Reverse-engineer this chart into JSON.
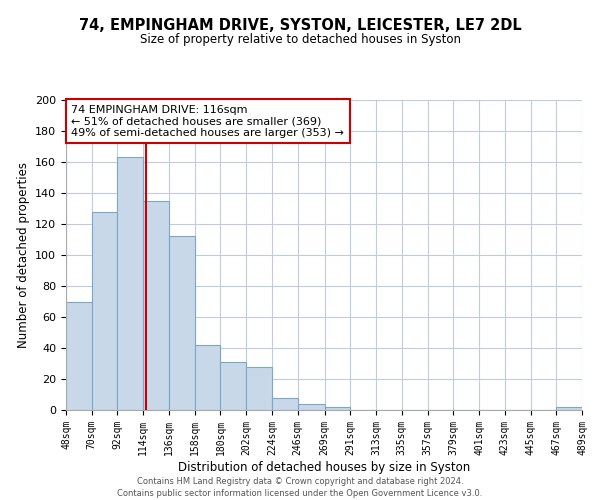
{
  "title": "74, EMPINGHAM DRIVE, SYSTON, LEICESTER, LE7 2DL",
  "subtitle": "Size of property relative to detached houses in Syston",
  "xlabel": "Distribution of detached houses by size in Syston",
  "ylabel": "Number of detached properties",
  "bar_edges": [
    48,
    70,
    92,
    114,
    136,
    158,
    180,
    202,
    224,
    246,
    269,
    291,
    313,
    335,
    357,
    379,
    401,
    423,
    445,
    467,
    489
  ],
  "bar_heights": [
    70,
    128,
    163,
    135,
    112,
    42,
    31,
    28,
    8,
    4,
    2,
    0,
    0,
    0,
    0,
    0,
    0,
    0,
    0,
    2
  ],
  "tick_labels": [
    "48sqm",
    "70sqm",
    "92sqm",
    "114sqm",
    "136sqm",
    "158sqm",
    "180sqm",
    "202sqm",
    "224sqm",
    "246sqm",
    "269sqm",
    "291sqm",
    "313sqm",
    "335sqm",
    "357sqm",
    "379sqm",
    "401sqm",
    "423sqm",
    "445sqm",
    "467sqm",
    "489sqm"
  ],
  "bar_color": "#c8d8e8",
  "bar_edge_color": "#7aa8c8",
  "vline_x": 116,
  "vline_color": "#cc0000",
  "ylim": [
    0,
    200
  ],
  "yticks": [
    0,
    20,
    40,
    60,
    80,
    100,
    120,
    140,
    160,
    180,
    200
  ],
  "annotation_title": "74 EMPINGHAM DRIVE: 116sqm",
  "annotation_line1": "← 51% of detached houses are smaller (369)",
  "annotation_line2": "49% of semi-detached houses are larger (353) →",
  "footer1": "Contains HM Land Registry data © Crown copyright and database right 2024.",
  "footer2": "Contains public sector information licensed under the Open Government Licence v3.0.",
  "background_color": "#ffffff",
  "grid_color": "#c0ccdd"
}
